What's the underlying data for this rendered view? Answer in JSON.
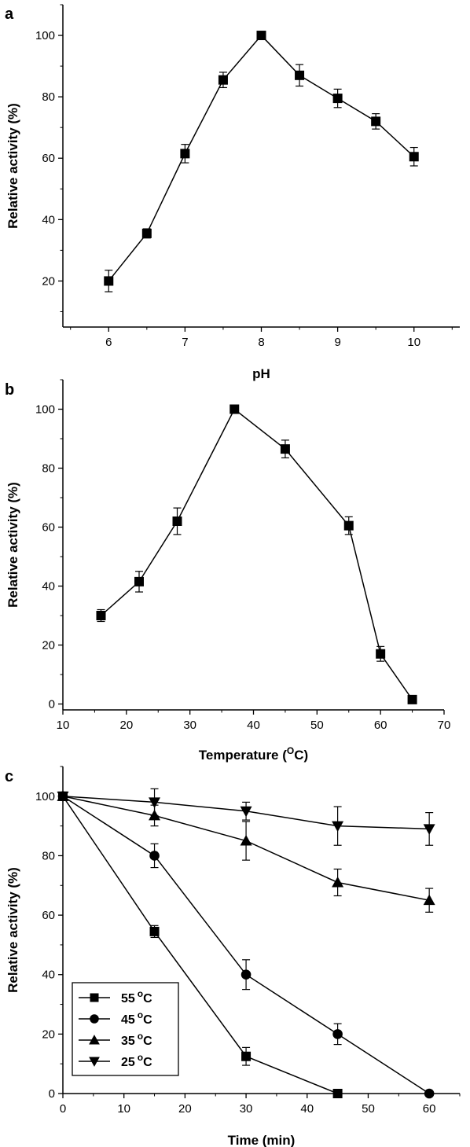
{
  "chart_data": [
    {
      "panel": "a",
      "type": "line",
      "xlabel": "pH",
      "ylabel": "Relative activity (%)",
      "xlim": [
        5.4,
        10.6
      ],
      "ylim": [
        5,
        110
      ],
      "xticks": [
        6,
        7,
        8,
        9,
        10
      ],
      "yticks": [
        20,
        40,
        60,
        80,
        100
      ],
      "series": [
        {
          "marker": "square",
          "x": [
            6,
            6.5,
            7,
            7.5,
            8,
            8.5,
            9,
            9.5,
            10
          ],
          "y": [
            20,
            35.5,
            61.5,
            85.5,
            100,
            87,
            79.5,
            72,
            60.5
          ],
          "err": [
            3.5,
            1.5,
            3,
            2.5,
            0.5,
            3.5,
            3,
            2.5,
            3
          ]
        }
      ]
    },
    {
      "panel": "b",
      "type": "line",
      "xlabel": "Temperature (",
      "xlabel_sup": "O",
      "xlabel_suffix": "C)",
      "ylabel": "Relative activity (%)",
      "xlim": [
        10,
        70
      ],
      "ylim": [
        -2,
        110
      ],
      "xticks": [
        10,
        20,
        30,
        40,
        50,
        60,
        70
      ],
      "yticks": [
        0,
        20,
        40,
        60,
        80,
        100
      ],
      "series": [
        {
          "marker": "square",
          "x": [
            16,
            22,
            28,
            37,
            45,
            55,
            60,
            65
          ],
          "y": [
            30,
            41.5,
            62,
            100,
            86.5,
            60.5,
            17,
            1.5
          ],
          "err": [
            2,
            3.5,
            4.5,
            0.5,
            3,
            3,
            2.5,
            1
          ]
        }
      ]
    },
    {
      "panel": "c",
      "type": "line",
      "xlabel": "Time (min)",
      "ylabel": "Relative activity (%)",
      "xlim": [
        0,
        65
      ],
      "ylim": [
        0,
        110
      ],
      "xticks": [
        0,
        10,
        20,
        30,
        40,
        50,
        60
      ],
      "yticks": [
        0,
        20,
        40,
        60,
        80,
        100
      ],
      "legend_placement": "bottom-left",
      "series": [
        {
          "name": "55",
          "unit_sup": "o",
          "unit": "C",
          "marker": "square",
          "x": [
            0,
            15,
            30,
            45
          ],
          "y": [
            100,
            54.5,
            12.5,
            0
          ],
          "err": [
            0,
            2,
            3,
            0
          ]
        },
        {
          "name": "45",
          "unit_sup": "o",
          "unit": "C",
          "marker": "circle",
          "x": [
            0,
            15,
            30,
            45,
            60
          ],
          "y": [
            100,
            80,
            40,
            20,
            0
          ],
          "err": [
            0,
            4,
            5,
            3.5,
            0
          ]
        },
        {
          "name": "35",
          "unit_sup": "o",
          "unit": "C",
          "marker": "triangle-up",
          "x": [
            0,
            15,
            30,
            45,
            60
          ],
          "y": [
            100,
            93.5,
            85,
            71,
            65
          ],
          "err": [
            0,
            3.5,
            6.5,
            4.5,
            4
          ]
        },
        {
          "name": "25",
          "unit_sup": "o",
          "unit": "C",
          "marker": "triangle-down",
          "x": [
            0,
            15,
            30,
            45,
            60
          ],
          "y": [
            100,
            98,
            95,
            90,
            89
          ],
          "err": [
            0,
            4.5,
            3,
            6.5,
            5.5
          ]
        }
      ]
    }
  ]
}
